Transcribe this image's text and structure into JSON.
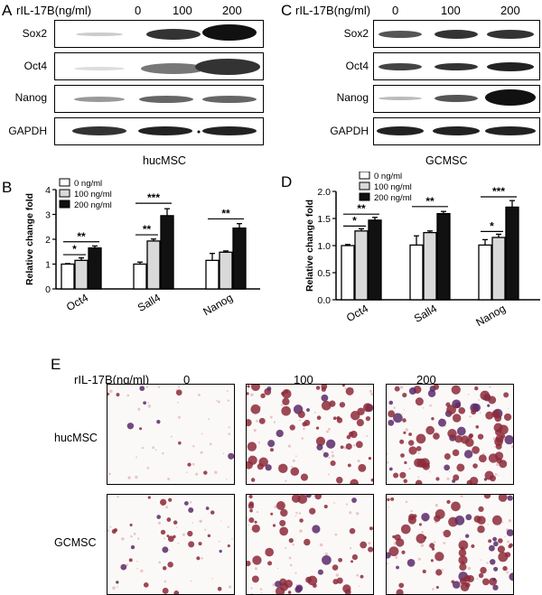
{
  "panels": {
    "A": {
      "letter": "A",
      "header": "rIL-17B(ng/ml)",
      "doses": [
        "0",
        "100",
        "200"
      ],
      "rows": [
        "Sox2",
        "Oct4",
        "Nanog",
        "GAPDH"
      ],
      "caption": "hucMSC"
    },
    "C": {
      "letter": "C",
      "header": "rIL-17B(ng/ml)",
      "doses": [
        "0",
        "100",
        "200"
      ],
      "rows": [
        "Sox2",
        "Oct4",
        "Nanog",
        "GAPDH"
      ],
      "caption": "GCMSC"
    },
    "B": {
      "letter": "B"
    },
    "D": {
      "letter": "D"
    },
    "E": {
      "letter": "E",
      "header": "rIL-17B(ng/ml)",
      "doses": [
        "0",
        "100",
        "200"
      ],
      "rows": [
        "hucMSC",
        "GCMSC"
      ]
    }
  },
  "chart_data": [
    {
      "type": "bar",
      "panel": "B",
      "categories": [
        "Oct4",
        "Sall4",
        "Nanog"
      ],
      "series": [
        {
          "name": "0 ng/ml",
          "values": [
            1.0,
            1.0,
            1.15
          ],
          "errors": [
            0.02,
            0.08,
            0.28
          ],
          "color": "#ffffff"
        },
        {
          "name": "100 ng/ml",
          "values": [
            1.15,
            1.93,
            1.48
          ],
          "errors": [
            0.1,
            0.08,
            0.05
          ],
          "color": "#d9d9d9"
        },
        {
          "name": "200 ng/ml",
          "values": [
            1.65,
            2.95,
            2.45
          ],
          "errors": [
            0.08,
            0.28,
            0.18
          ],
          "color": "#111111"
        }
      ],
      "ylabel": "Relative change fold",
      "ylim": [
        0,
        4
      ],
      "yticks": [
        "0",
        "1",
        "2",
        "3",
        "4"
      ],
      "significance": [
        {
          "cat": 0,
          "from": 0,
          "to": 1,
          "label": "*",
          "y": 1.38
        },
        {
          "cat": 0,
          "from": 0,
          "to": 2,
          "label": "**",
          "y": 1.9
        },
        {
          "cat": 1,
          "from": 0,
          "to": 1,
          "label": "**",
          "y": 2.18
        },
        {
          "cat": 1,
          "from": 0,
          "to": 2,
          "label": "***",
          "y": 3.45
        },
        {
          "cat": 2,
          "from": 0,
          "to": 2,
          "label": "**",
          "y": 2.82
        }
      ],
      "legend": "top-left"
    },
    {
      "type": "bar",
      "panel": "D",
      "categories": [
        "Oct4",
        "Sall4",
        "Nanog"
      ],
      "series": [
        {
          "name": "0 ng/ml",
          "values": [
            1.0,
            1.01,
            1.01
          ],
          "errors": [
            0.02,
            0.17,
            0.1
          ],
          "color": "#ffffff"
        },
        {
          "name": "100 ng/ml",
          "values": [
            1.27,
            1.24,
            1.15
          ],
          "errors": [
            0.04,
            0.03,
            0.06
          ],
          "color": "#d9d9d9"
        },
        {
          "name": "200 ng/ml",
          "values": [
            1.47,
            1.59,
            1.71
          ],
          "errors": [
            0.05,
            0.04,
            0.12
          ],
          "color": "#111111"
        }
      ],
      "ylabel": "Relative change fold",
      "ylim": [
        0,
        2.0
      ],
      "yticks": [
        "0.0",
        "0.5",
        "1.0",
        "1.5",
        "2.0"
      ],
      "significance": [
        {
          "cat": 0,
          "from": 0,
          "to": 1,
          "label": "*",
          "y": 1.36
        },
        {
          "cat": 0,
          "from": 0,
          "to": 2,
          "label": "**",
          "y": 1.58
        },
        {
          "cat": 1,
          "from": 0,
          "to": 2,
          "label": "**",
          "y": 1.72
        },
        {
          "cat": 2,
          "from": 0,
          "to": 1,
          "label": "*",
          "y": 1.26
        },
        {
          "cat": 2,
          "from": 0,
          "to": 2,
          "label": "***",
          "y": 1.9
        }
      ],
      "legend": "top-left"
    }
  ]
}
